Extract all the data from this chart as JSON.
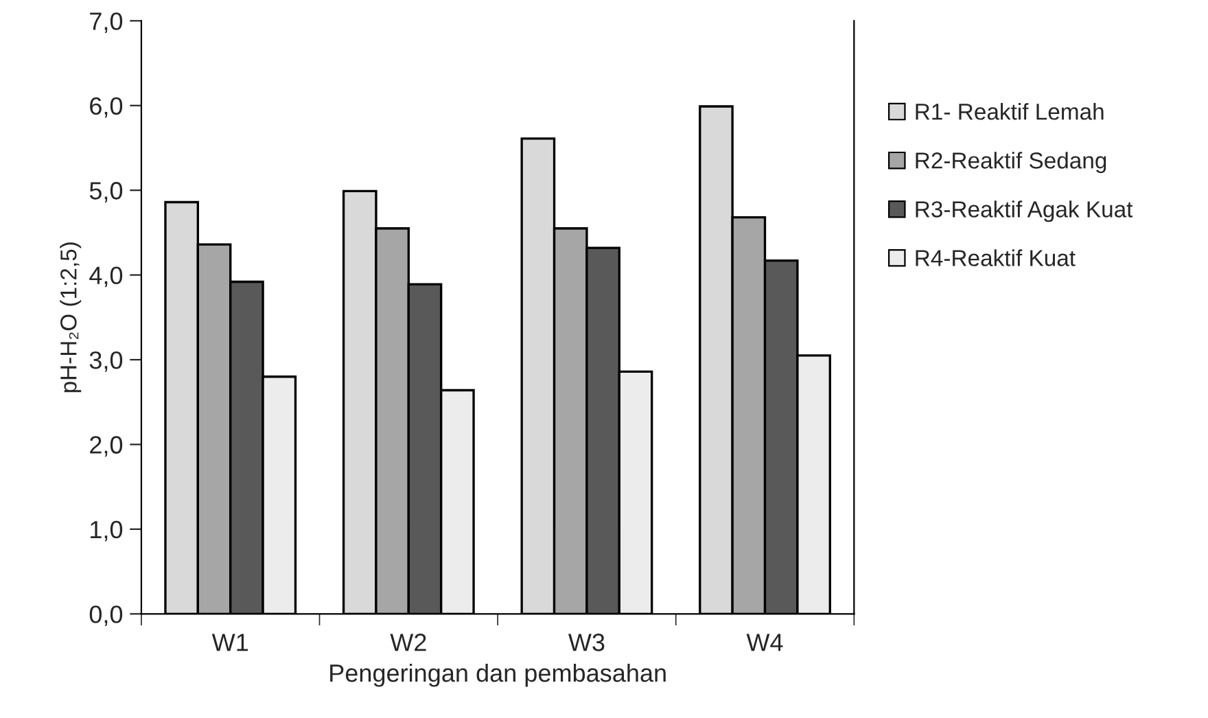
{
  "chart_data": {
    "type": "bar",
    "xlabel": "Pengeringan dan pembasahan",
    "ylabel": "pH-H₂O (1:2,5)",
    "categories": [
      "W1",
      "W2",
      "W3",
      "W4"
    ],
    "series": [
      {
        "name": "R1- Reaktif Lemah",
        "color": "#d9d9d9",
        "values": [
          4.86,
          4.99,
          5.61,
          5.99
        ]
      },
      {
        "name": "R2-Reaktif Sedang",
        "color": "#a6a6a6",
        "values": [
          4.36,
          4.55,
          4.55,
          4.68
        ]
      },
      {
        "name": "R3-Reaktif Agak Kuat",
        "color": "#595959",
        "values": [
          3.92,
          3.89,
          4.32,
          4.17
        ]
      },
      {
        "name": "R4-Reaktif Kuat",
        "color": "#ececec",
        "values": [
          2.8,
          2.64,
          2.86,
          3.05
        ]
      }
    ],
    "ylim": [
      0,
      7
    ],
    "yticks": [
      {
        "value": 0,
        "label": "0,0"
      },
      {
        "value": 1,
        "label": "1,0"
      },
      {
        "value": 2,
        "label": "2,0"
      },
      {
        "value": 3,
        "label": "3,0"
      },
      {
        "value": 4,
        "label": "4,0"
      },
      {
        "value": 5,
        "label": "5,0"
      },
      {
        "value": 6,
        "label": "6,0"
      },
      {
        "value": 7,
        "label": "7,0"
      }
    ],
    "grid": false,
    "legend": "right"
  }
}
